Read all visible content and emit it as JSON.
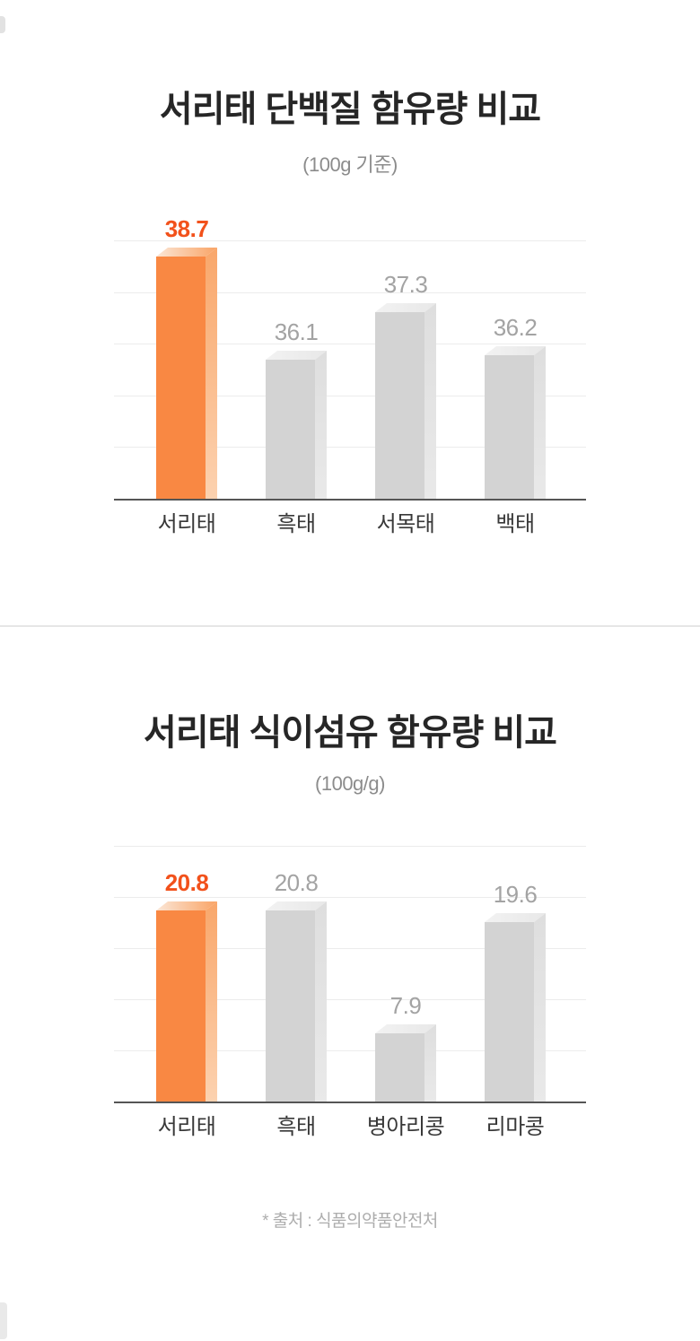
{
  "page": {
    "background": "#ffffff"
  },
  "chart_data": [
    {
      "type": "bar",
      "title": "서리태 단백질 함유량 비교",
      "subtitle": "(100g 기준)",
      "categories": [
        "서리태",
        "흑태",
        "서목태",
        "백태"
      ],
      "values": [
        38.7,
        36.1,
        37.3,
        36.2
      ],
      "value_labels": [
        "38.7",
        "36.1",
        "37.3",
        "36.2"
      ],
      "highlight_index": 0,
      "highlight_category": "서리태",
      "ylim": [
        32.6,
        39.1
      ],
      "grid": true,
      "gridline_count": 5,
      "legend": false,
      "xlabel": "",
      "ylabel": ""
    },
    {
      "type": "bar",
      "title": "서리태 식이섬유 함유량 비교",
      "subtitle": "(100g/g)",
      "categories": [
        "서리태",
        "흑태",
        "병아리콩",
        "리마콩"
      ],
      "values": [
        20.8,
        20.8,
        7.9,
        19.6
      ],
      "value_labels": [
        "20.8",
        "20.8",
        "7.9",
        "19.6"
      ],
      "highlight_index": 0,
      "highlight_category": "서리태",
      "ylim": [
        0.8,
        27.6
      ],
      "grid": true,
      "gridline_count": 5,
      "legend": false,
      "xlabel": "",
      "ylabel": ""
    }
  ],
  "footer": {
    "source_note": "* 출처 : 식품의약품안전처"
  },
  "colors": {
    "highlight_front": "#F98843",
    "highlight_side_top": "#F9A76B",
    "highlight_side_bottom": "#FCD2B0",
    "highlight_top_left": "#FBE6D6",
    "highlight_top_right": "#F9A466",
    "highlight_value_text": "#F2511B",
    "gray_front": "#D3D3D3",
    "gray_side_top": "#DEDEDE",
    "gray_side_bottom": "#E9E9E9",
    "gray_top_left": "#F2F2F2",
    "gray_top_right": "#E8E8E8",
    "gray_value_text": "#A3A3A3",
    "category_label_text": "#383838",
    "gridline": "#ECECEC",
    "axis_line": "#555555"
  }
}
